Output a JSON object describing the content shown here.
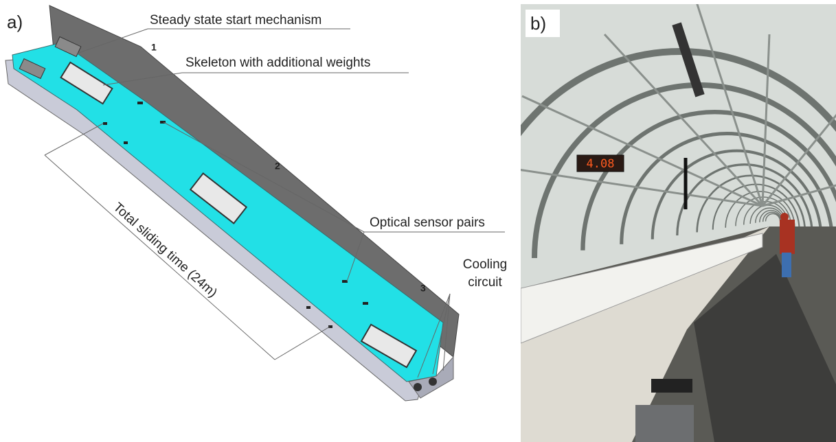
{
  "panel_a": {
    "label": "a)",
    "annotations": [
      "Steady state start mechanism",
      "Skeleton with additional weights",
      "Optical sensor pairs"
    ],
    "cooling": [
      "Cooling",
      "circuit"
    ],
    "markers": [
      "1",
      "2",
      "3"
    ],
    "dimension": "Total sliding time (24m)"
  },
  "panel_b": {
    "label": "b)",
    "display": "4.08"
  }
}
